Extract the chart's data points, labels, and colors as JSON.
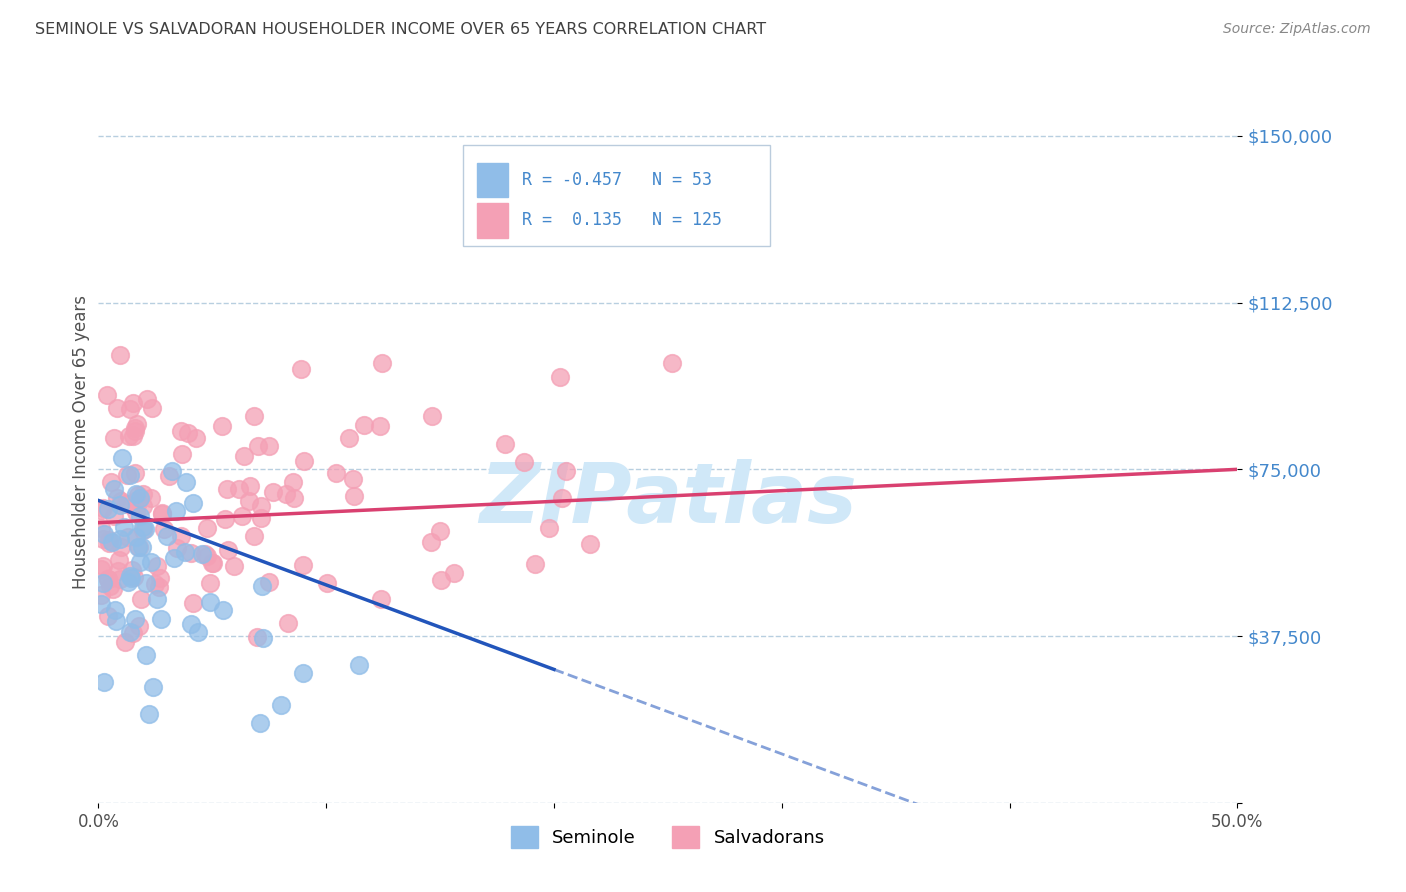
{
  "title": "SEMINOLE VS SALVADORAN HOUSEHOLDER INCOME OVER 65 YEARS CORRELATION CHART",
  "source": "Source: ZipAtlas.com",
  "ylabel": "Householder Income Over 65 years",
  "x_min": 0.0,
  "x_max": 0.5,
  "y_min": 0,
  "y_max": 162500,
  "y_ticks": [
    0,
    37500,
    75000,
    112500,
    150000
  ],
  "y_tick_labels": [
    "",
    "$37,500",
    "$75,000",
    "$112,500",
    "$150,000"
  ],
  "x_ticks": [
    0.0,
    0.1,
    0.2,
    0.3,
    0.4,
    0.5
  ],
  "x_tick_labels": [
    "0.0%",
    "",
    "",
    "",
    "",
    "50.0%"
  ],
  "seminole_R": -0.457,
  "seminole_N": 53,
  "salvadoran_R": 0.135,
  "salvadoran_N": 125,
  "seminole_color": "#90bde8",
  "salvadoran_color": "#f4a0b5",
  "seminole_line_color": "#2255bb",
  "salvadoran_line_color": "#d94070",
  "background_color": "#ffffff",
  "grid_color": "#b8cfe0",
  "title_color": "#404040",
  "source_color": "#888888",
  "axis_label_color": "#4488cc",
  "watermark_color": "#d0e8f8",
  "seminole_line_y0": 68000,
  "seminole_line_y_at_20pct": 30000,
  "salvadoran_line_y0": 63000,
  "salvadoran_line_y_at_50pct": 75000
}
